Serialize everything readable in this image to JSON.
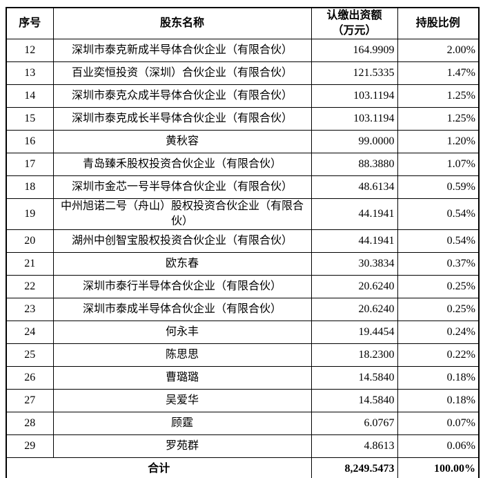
{
  "colors": {
    "background": "#ffffff",
    "border": "#000000",
    "text": "#000000"
  },
  "table": {
    "headers": [
      {
        "label": "序号"
      },
      {
        "label": "股东名称"
      },
      {
        "label": "认缴出资额\n（万元）"
      },
      {
        "label": "持股比例"
      }
    ],
    "rows": [
      {
        "index": "12",
        "name": "深圳市泰克新成半导体合伙企业（有限合伙）",
        "amount": "164.9909",
        "ratio": "2.00%"
      },
      {
        "index": "13",
        "name": "百业奕恒投资（深圳）合伙企业（有限合伙）",
        "amount": "121.5335",
        "ratio": "1.47%"
      },
      {
        "index": "14",
        "name": "深圳市泰克众成半导体合伙企业（有限合伙）",
        "amount": "103.1194",
        "ratio": "1.25%"
      },
      {
        "index": "15",
        "name": "深圳市泰克成长半导体合伙企业（有限合伙）",
        "amount": "103.1194",
        "ratio": "1.25%"
      },
      {
        "index": "16",
        "name": "黄秋容",
        "amount": "99.0000",
        "ratio": "1.20%"
      },
      {
        "index": "17",
        "name": "青岛臻禾股权投资合伙企业（有限合伙）",
        "amount": "88.3880",
        "ratio": "1.07%"
      },
      {
        "index": "18",
        "name": "深圳市金芯一号半导体合伙企业（有限合伙）",
        "amount": "48.6134",
        "ratio": "0.59%"
      },
      {
        "index": "19",
        "name": "中州旭诺二号（舟山）股权投资合伙企业（有限合伙）",
        "amount": "44.1941",
        "ratio": "0.54%"
      },
      {
        "index": "20",
        "name": "湖州中创智宝股权投资合伙企业（有限合伙）",
        "amount": "44.1941",
        "ratio": "0.54%"
      },
      {
        "index": "21",
        "name": "欧东春",
        "amount": "30.3834",
        "ratio": "0.37%"
      },
      {
        "index": "22",
        "name": "深圳市泰行半导体合伙企业（有限合伙）",
        "amount": "20.6240",
        "ratio": "0.25%"
      },
      {
        "index": "23",
        "name": "深圳市泰成半导体合伙企业（有限合伙）",
        "amount": "20.6240",
        "ratio": "0.25%"
      },
      {
        "index": "24",
        "name": "何永丰",
        "amount": "19.4454",
        "ratio": "0.24%"
      },
      {
        "index": "25",
        "name": "陈思思",
        "amount": "18.2300",
        "ratio": "0.22%"
      },
      {
        "index": "26",
        "name": "曹璐璐",
        "amount": "14.5840",
        "ratio": "0.18%"
      },
      {
        "index": "27",
        "name": "吴爱华",
        "amount": "14.5840",
        "ratio": "0.18%"
      },
      {
        "index": "28",
        "name": "顾霆",
        "amount": "6.0767",
        "ratio": "0.07%"
      },
      {
        "index": "29",
        "name": "罗苑群",
        "amount": "4.8613",
        "ratio": "0.06%"
      }
    ],
    "total": {
      "label": "合计",
      "amount": "8,249.5473",
      "ratio": "100.00%"
    }
  }
}
